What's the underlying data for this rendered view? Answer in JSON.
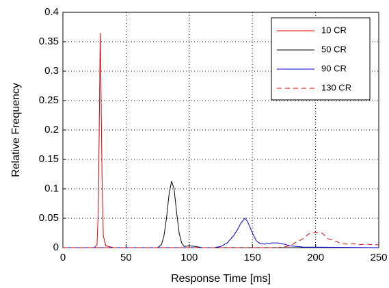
{
  "chart_data": {
    "type": "line",
    "xlabel": "Response Time [ms]",
    "ylabel": "Relative Frequency",
    "xlim": [
      0,
      250
    ],
    "ylim": [
      0,
      0.4
    ],
    "xticks": [
      0,
      50,
      100,
      150,
      200,
      250
    ],
    "yticks": [
      0,
      0.05,
      0.1,
      0.15,
      0.2,
      0.25,
      0.3,
      0.35,
      0.4
    ],
    "grid": true,
    "legend": "upper right",
    "series": [
      {
        "name": "10 CR",
        "color": "#e00000",
        "dash": false,
        "x": [
          0,
          25,
          27,
          28,
          29,
          29.5,
          30,
          31,
          32,
          34,
          36,
          40,
          250
        ],
        "values": [
          0,
          0,
          0.005,
          0.06,
          0.25,
          0.365,
          0.3,
          0.12,
          0.02,
          0.003,
          0.002,
          0,
          0
        ]
      },
      {
        "name": "50 CR",
        "color": "#000000",
        "dash": false,
        "x": [
          0,
          75,
          78,
          80,
          82,
          84,
          86,
          88,
          90,
          92,
          94,
          96,
          100,
          105,
          110,
          250
        ],
        "values": [
          0,
          0,
          0.005,
          0.02,
          0.05,
          0.09,
          0.113,
          0.1,
          0.06,
          0.025,
          0.008,
          0.002,
          0.003,
          0.002,
          0,
          0
        ]
      },
      {
        "name": "90 CR",
        "color": "#0000e0",
        "dash": false,
        "x": [
          0,
          120,
          125,
          130,
          135,
          138,
          141,
          144,
          146,
          148,
          150,
          153,
          156,
          160,
          165,
          170,
          175,
          180,
          190,
          250
        ],
        "values": [
          0,
          0,
          0.002,
          0.008,
          0.02,
          0.03,
          0.042,
          0.05,
          0.045,
          0.035,
          0.025,
          0.012,
          0.007,
          0.006,
          0.008,
          0.008,
          0.006,
          0.003,
          0.001,
          0
        ]
      },
      {
        "name": "130 CR",
        "color": "#e00000",
        "dash": true,
        "x": [
          0,
          170,
          180,
          185,
          190,
          195,
          200,
          205,
          210,
          215,
          220,
          225,
          230,
          235,
          240,
          245,
          250
        ],
        "values": [
          0,
          0,
          0.003,
          0.01,
          0.015,
          0.024,
          0.026,
          0.025,
          0.015,
          0.012,
          0.007,
          0.006,
          0.007,
          0.005,
          0.006,
          0.005,
          0.005
        ]
      }
    ]
  }
}
